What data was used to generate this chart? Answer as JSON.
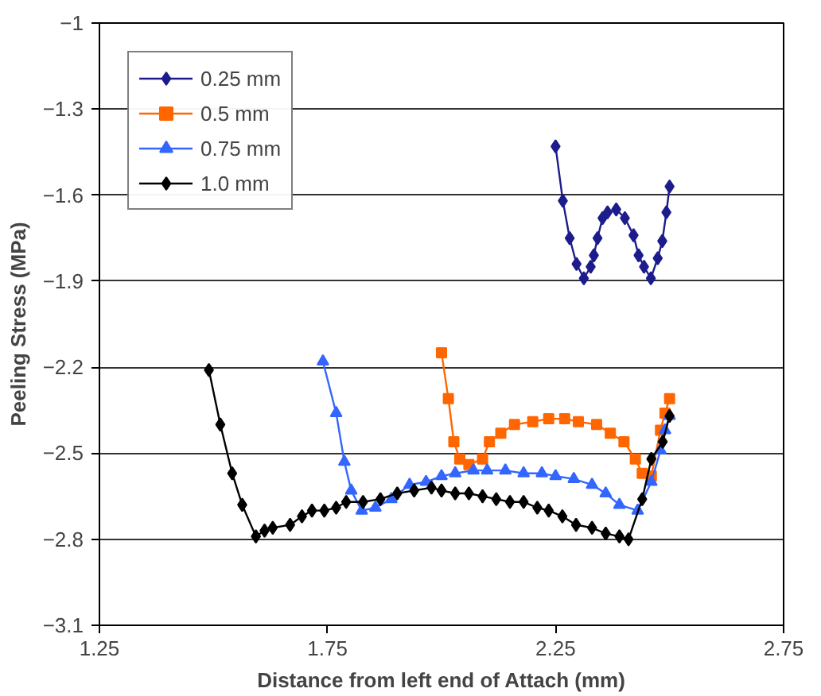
{
  "chart_data": {
    "type": "line",
    "xlabel": "Distance from left end of Attach (mm)",
    "ylabel": "Peeling Stress (MPa)",
    "xlim": [
      1.25,
      2.75
    ],
    "xticks": [
      1.25,
      1.75,
      2.25,
      2.75
    ],
    "ylim": [
      -3.1,
      -1
    ],
    "yticks": [
      -3.1,
      -2.8,
      -2.5,
      -2.2,
      -1.9,
      -1.6,
      -1.3,
      -1
    ],
    "grid": "y",
    "legend": "top left",
    "series": [
      {
        "name": "0.25 mm",
        "color": "#1c1c8c",
        "marker": "diamond",
        "x": [
          2.25,
          2.266,
          2.281,
          2.296,
          2.312,
          2.327,
          2.334,
          2.342,
          2.353,
          2.364,
          2.383,
          2.402,
          2.421,
          2.432,
          2.444,
          2.459,
          2.474,
          2.484,
          2.493,
          2.5
        ],
        "values": [
          -1.43,
          -1.62,
          -1.75,
          -1.84,
          -1.89,
          -1.85,
          -1.81,
          -1.75,
          -1.68,
          -1.66,
          -1.65,
          -1.68,
          -1.74,
          -1.81,
          -1.85,
          -1.89,
          -1.82,
          -1.76,
          -1.66,
          -1.57
        ]
      },
      {
        "name": "0.5 mm",
        "color": "#ff6600",
        "marker": "square",
        "x": [
          2.0,
          2.015,
          2.027,
          2.04,
          2.06,
          2.09,
          2.105,
          2.13,
          2.16,
          2.2,
          2.235,
          2.27,
          2.3,
          2.34,
          2.37,
          2.4,
          2.425,
          2.44,
          2.46,
          2.48,
          2.49,
          2.5
        ],
        "values": [
          -2.15,
          -2.31,
          -2.46,
          -2.52,
          -2.54,
          -2.52,
          -2.46,
          -2.43,
          -2.4,
          -2.39,
          -2.38,
          -2.38,
          -2.39,
          -2.4,
          -2.43,
          -2.46,
          -2.52,
          -2.57,
          -2.58,
          -2.42,
          -2.36,
          -2.31
        ]
      },
      {
        "name": "0.75 mm",
        "color": "#3366ff",
        "marker": "triangle",
        "x": [
          1.74,
          1.769,
          1.787,
          1.802,
          1.825,
          1.855,
          1.89,
          1.93,
          1.966,
          2.0,
          2.03,
          2.07,
          2.1,
          2.14,
          2.18,
          2.22,
          2.25,
          2.29,
          2.33,
          2.36,
          2.39,
          2.43,
          2.46,
          2.48,
          2.49,
          2.5
        ],
        "values": [
          -2.18,
          -2.36,
          -2.53,
          -2.63,
          -2.7,
          -2.69,
          -2.66,
          -2.61,
          -2.6,
          -2.58,
          -2.57,
          -2.56,
          -2.56,
          -2.56,
          -2.57,
          -2.57,
          -2.58,
          -2.59,
          -2.61,
          -2.64,
          -2.68,
          -2.7,
          -2.6,
          -2.49,
          -2.42,
          -2.37
        ]
      },
      {
        "name": "1.0 mm",
        "color": "#000000",
        "marker": "diamond",
        "x": [
          1.49,
          1.515,
          1.541,
          1.563,
          1.593,
          1.612,
          1.63,
          1.668,
          1.694,
          1.716,
          1.743,
          1.769,
          1.791,
          1.828,
          1.866,
          1.903,
          1.94,
          1.978,
          2.0,
          2.03,
          2.06,
          2.09,
          2.12,
          2.15,
          2.18,
          2.21,
          2.235,
          2.265,
          2.295,
          2.33,
          2.36,
          2.39,
          2.41,
          2.44,
          2.46,
          2.485,
          2.5
        ],
        "values": [
          -2.21,
          -2.4,
          -2.57,
          -2.68,
          -2.79,
          -2.77,
          -2.76,
          -2.75,
          -2.72,
          -2.7,
          -2.7,
          -2.69,
          -2.67,
          -2.67,
          -2.66,
          -2.64,
          -2.63,
          -2.62,
          -2.63,
          -2.64,
          -2.64,
          -2.65,
          -2.66,
          -2.67,
          -2.67,
          -2.69,
          -2.7,
          -2.72,
          -2.75,
          -2.76,
          -2.78,
          -2.79,
          -2.8,
          -2.66,
          -2.52,
          -2.46,
          -2.37
        ]
      }
    ]
  }
}
